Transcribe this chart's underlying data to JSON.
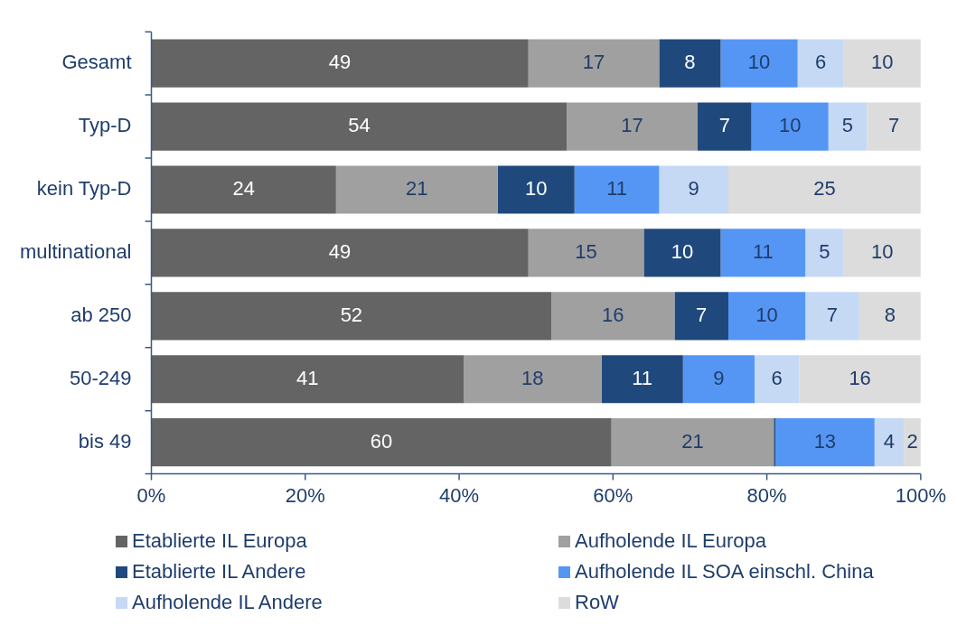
{
  "chart_data": {
    "type": "bar",
    "orientation": "horizontal",
    "stacked": true,
    "categories": [
      "Gesamt",
      "Typ-D",
      "kein Typ-D",
      "multinational",
      "ab 250",
      "50-249",
      "bis 49"
    ],
    "xlim": [
      0,
      100
    ],
    "xticks": [
      {
        "value": 0,
        "label": "0%"
      },
      {
        "value": 20,
        "label": "20%"
      },
      {
        "value": 40,
        "label": "40%"
      },
      {
        "value": 60,
        "label": "60%"
      },
      {
        "value": 80,
        "label": "80%"
      },
      {
        "value": 100,
        "label": "100%"
      }
    ],
    "grid": false,
    "legend": "bottom",
    "series": [
      {
        "name": "Etablierte IL Europa",
        "color": "#646464",
        "values": [
          49,
          54,
          24,
          49,
          52,
          40.6,
          59.8
        ],
        "value_labels": [
          "49",
          "54",
          "24",
          "49",
          "52",
          "41",
          "60"
        ]
      },
      {
        "name": "Aufholende IL Europa",
        "color": "#a0a0a0",
        "values": [
          17,
          17,
          21,
          15,
          16,
          17.9,
          21.1
        ],
        "value_labels": [
          "17",
          "17",
          "21",
          "15",
          "16",
          "18",
          "21"
        ]
      },
      {
        "name": "Etablierte IL Andere",
        "color": "#1f497d",
        "values": [
          8,
          7,
          10,
          10,
          7,
          10.6,
          0.2
        ],
        "value_labels": [
          "8",
          "7",
          "10",
          "10",
          "7",
          "11",
          null
        ]
      },
      {
        "name": "Aufholende IL SOA einschl. China",
        "color": "#5596f5",
        "values": [
          10,
          10,
          11,
          11,
          10,
          9.3,
          12.9
        ],
        "value_labels": [
          "10",
          "10",
          "11",
          "11",
          "10",
          "9",
          "13"
        ]
      },
      {
        "name": "Aufholende IL Andere",
        "color": "#c5d9f5",
        "values": [
          6,
          5,
          9,
          5,
          7,
          5.8,
          3.8
        ],
        "value_labels": [
          "6",
          "5",
          "9",
          "5",
          "7",
          "6",
          "4"
        ]
      },
      {
        "name": "RoW",
        "color": "#dcdcdc",
        "values": [
          10,
          7,
          25,
          10,
          8,
          15.8,
          2.2
        ],
        "value_labels": [
          "10",
          "7",
          "25",
          "10",
          "8",
          "16",
          "2"
        ]
      }
    ]
  }
}
